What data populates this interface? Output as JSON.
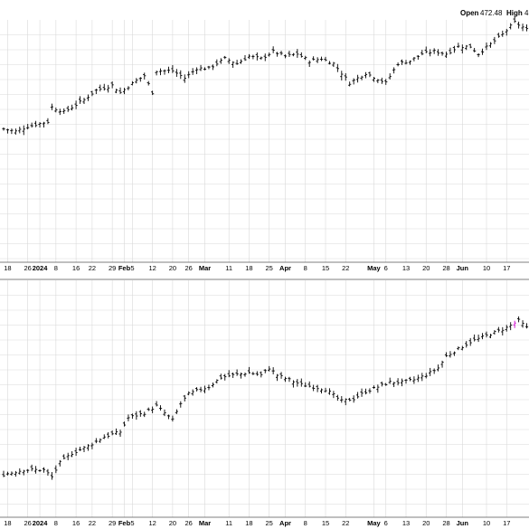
{
  "header": {
    "open_label": "Open",
    "open_value": "472.48",
    "high_label": "High",
    "high_value": "4"
  },
  "colors": {
    "bar": "#000000",
    "grid": "#d9d9d9",
    "highlight": "#cc00cc",
    "frame": "#555555"
  },
  "chart_data": [
    {
      "type": "ohlc",
      "title": "",
      "grid": true,
      "x_tick_labels": [
        {
          "label": "18",
          "bold": false,
          "i": 1
        },
        {
          "label": "26",
          "bold": false,
          "i": 6
        },
        {
          "label": "2024",
          "bold": true,
          "i": 9
        },
        {
          "label": "8",
          "bold": false,
          "i": 13
        },
        {
          "label": "16",
          "bold": false,
          "i": 18
        },
        {
          "label": "22",
          "bold": false,
          "i": 22
        },
        {
          "label": "29",
          "bold": false,
          "i": 27
        },
        {
          "label": "Feb",
          "bold": true,
          "i": 30
        },
        {
          "label": "5",
          "bold": false,
          "i": 32
        },
        {
          "label": "12",
          "bold": false,
          "i": 37
        },
        {
          "label": "20",
          "bold": false,
          "i": 42
        },
        {
          "label": "26",
          "bold": false,
          "i": 46
        },
        {
          "label": "Mar",
          "bold": true,
          "i": 50
        },
        {
          "label": "11",
          "bold": false,
          "i": 56
        },
        {
          "label": "18",
          "bold": false,
          "i": 61
        },
        {
          "label": "25",
          "bold": false,
          "i": 66
        },
        {
          "label": "Apr",
          "bold": true,
          "i": 70
        },
        {
          "label": "8",
          "bold": false,
          "i": 75
        },
        {
          "label": "15",
          "bold": false,
          "i": 80
        },
        {
          "label": "22",
          "bold": false,
          "i": 85
        },
        {
          "label": "May",
          "bold": true,
          "i": 92
        },
        {
          "label": "6",
          "bold": false,
          "i": 95
        },
        {
          "label": "13",
          "bold": false,
          "i": 100
        },
        {
          "label": "20",
          "bold": false,
          "i": 105
        },
        {
          "label": "28",
          "bold": false,
          "i": 110
        },
        {
          "label": "Jun",
          "bold": true,
          "i": 114
        },
        {
          "label": "10",
          "bold": false,
          "i": 120
        },
        {
          "label": "17",
          "bold": false,
          "i": 125
        }
      ],
      "closes": [
        166,
        170,
        172,
        168,
        173,
        166,
        174,
        167,
        175,
        168,
        178,
        182,
        181,
        185,
        183,
        180,
        172,
        168,
        175,
        172,
        183,
        178,
        172,
        188,
        182,
        196,
        186,
        200,
        194,
        204,
        198,
        196,
        190,
        202,
        198,
        206,
        200,
        210,
        205,
        206,
        212,
        204,
        218,
        220,
        215,
        224,
        210,
        222,
        214,
        226,
        218,
        228,
        218,
        230,
        222,
        226,
        220,
        228,
        224,
        228,
        224,
        224,
        216,
        218,
        226,
        224,
        220,
        216,
        210,
        205,
        214,
        206,
        210,
        208,
        202,
        196,
        202,
        210,
        202,
        206,
        198,
        192,
        208,
        200,
        210,
        216,
        212,
        216,
        216,
        220,
        218,
        226,
        228,
        236,
        234,
        240,
        238,
        242,
        246,
        248,
        250,
        250,
        254,
        258,
        256,
        262
      ],
      "panels": [
        {
          "name": "panel-1",
          "ylim": [
            0,
            1
          ],
          "anchors": [
            [
              0,
              0.55
            ],
            [
              3,
              0.54
            ],
            [
              6,
              0.56
            ],
            [
              11,
              0.58
            ],
            [
              12,
              0.64
            ],
            [
              15,
              0.62
            ],
            [
              20,
              0.67
            ],
            [
              23,
              0.71
            ],
            [
              27,
              0.73
            ],
            [
              29,
              0.7
            ],
            [
              33,
              0.75
            ],
            [
              35,
              0.77
            ],
            [
              37,
              0.7
            ],
            [
              38,
              0.79
            ],
            [
              42,
              0.79
            ],
            [
              45,
              0.76
            ],
            [
              48,
              0.8
            ],
            [
              51,
              0.8
            ],
            [
              55,
              0.84
            ],
            [
              58,
              0.82
            ],
            [
              61,
              0.85
            ],
            [
              64,
              0.84
            ],
            [
              67,
              0.87
            ],
            [
              70,
              0.85
            ],
            [
              73,
              0.86
            ],
            [
              76,
              0.83
            ],
            [
              79,
              0.84
            ],
            [
              82,
              0.82
            ],
            [
              86,
              0.74
            ],
            [
              90,
              0.78
            ],
            [
              95,
              0.74
            ],
            [
              98,
              0.82
            ],
            [
              101,
              0.83
            ],
            [
              104,
              0.86
            ],
            [
              107,
              0.87
            ],
            [
              110,
              0.86
            ],
            [
              113,
              0.89
            ],
            [
              116,
              0.89
            ],
            [
              118,
              0.86
            ],
            [
              121,
              0.9
            ],
            [
              124,
              0.94
            ],
            [
              127,
              0.99
            ],
            [
              130,
              0.96
            ]
          ]
        },
        {
          "name": "panel-2",
          "ylim": [
            0,
            1
          ],
          "anchors": [
            [
              0,
              0.18
            ],
            [
              5,
              0.2
            ],
            [
              10,
              0.2
            ],
            [
              12,
              0.17
            ],
            [
              14,
              0.23
            ],
            [
              17,
              0.27
            ],
            [
              21,
              0.3
            ],
            [
              25,
              0.34
            ],
            [
              29,
              0.36
            ],
            [
              31,
              0.42
            ],
            [
              35,
              0.44
            ],
            [
              38,
              0.47
            ],
            [
              40,
              0.44
            ],
            [
              42,
              0.41
            ],
            [
              44,
              0.48
            ],
            [
              46,
              0.52
            ],
            [
              49,
              0.54
            ],
            [
              51,
              0.55
            ],
            [
              54,
              0.59
            ],
            [
              57,
              0.6
            ],
            [
              61,
              0.61
            ],
            [
              64,
              0.6
            ],
            [
              66,
              0.63
            ],
            [
              68,
              0.6
            ],
            [
              71,
              0.58
            ],
            [
              74,
              0.56
            ],
            [
              77,
              0.55
            ],
            [
              80,
              0.54
            ],
            [
              84,
              0.49
            ],
            [
              87,
              0.5
            ],
            [
              90,
              0.53
            ],
            [
              93,
              0.55
            ],
            [
              96,
              0.57
            ],
            [
              99,
              0.57
            ],
            [
              102,
              0.58
            ],
            [
              105,
              0.6
            ],
            [
              108,
              0.63
            ],
            [
              110,
              0.68
            ],
            [
              113,
              0.71
            ],
            [
              116,
              0.74
            ],
            [
              119,
              0.76
            ],
            [
              122,
              0.78
            ],
            [
              125,
              0.8
            ],
            [
              128,
              0.83
            ],
            [
              130,
              0.8
            ]
          ]
        }
      ]
    }
  ]
}
